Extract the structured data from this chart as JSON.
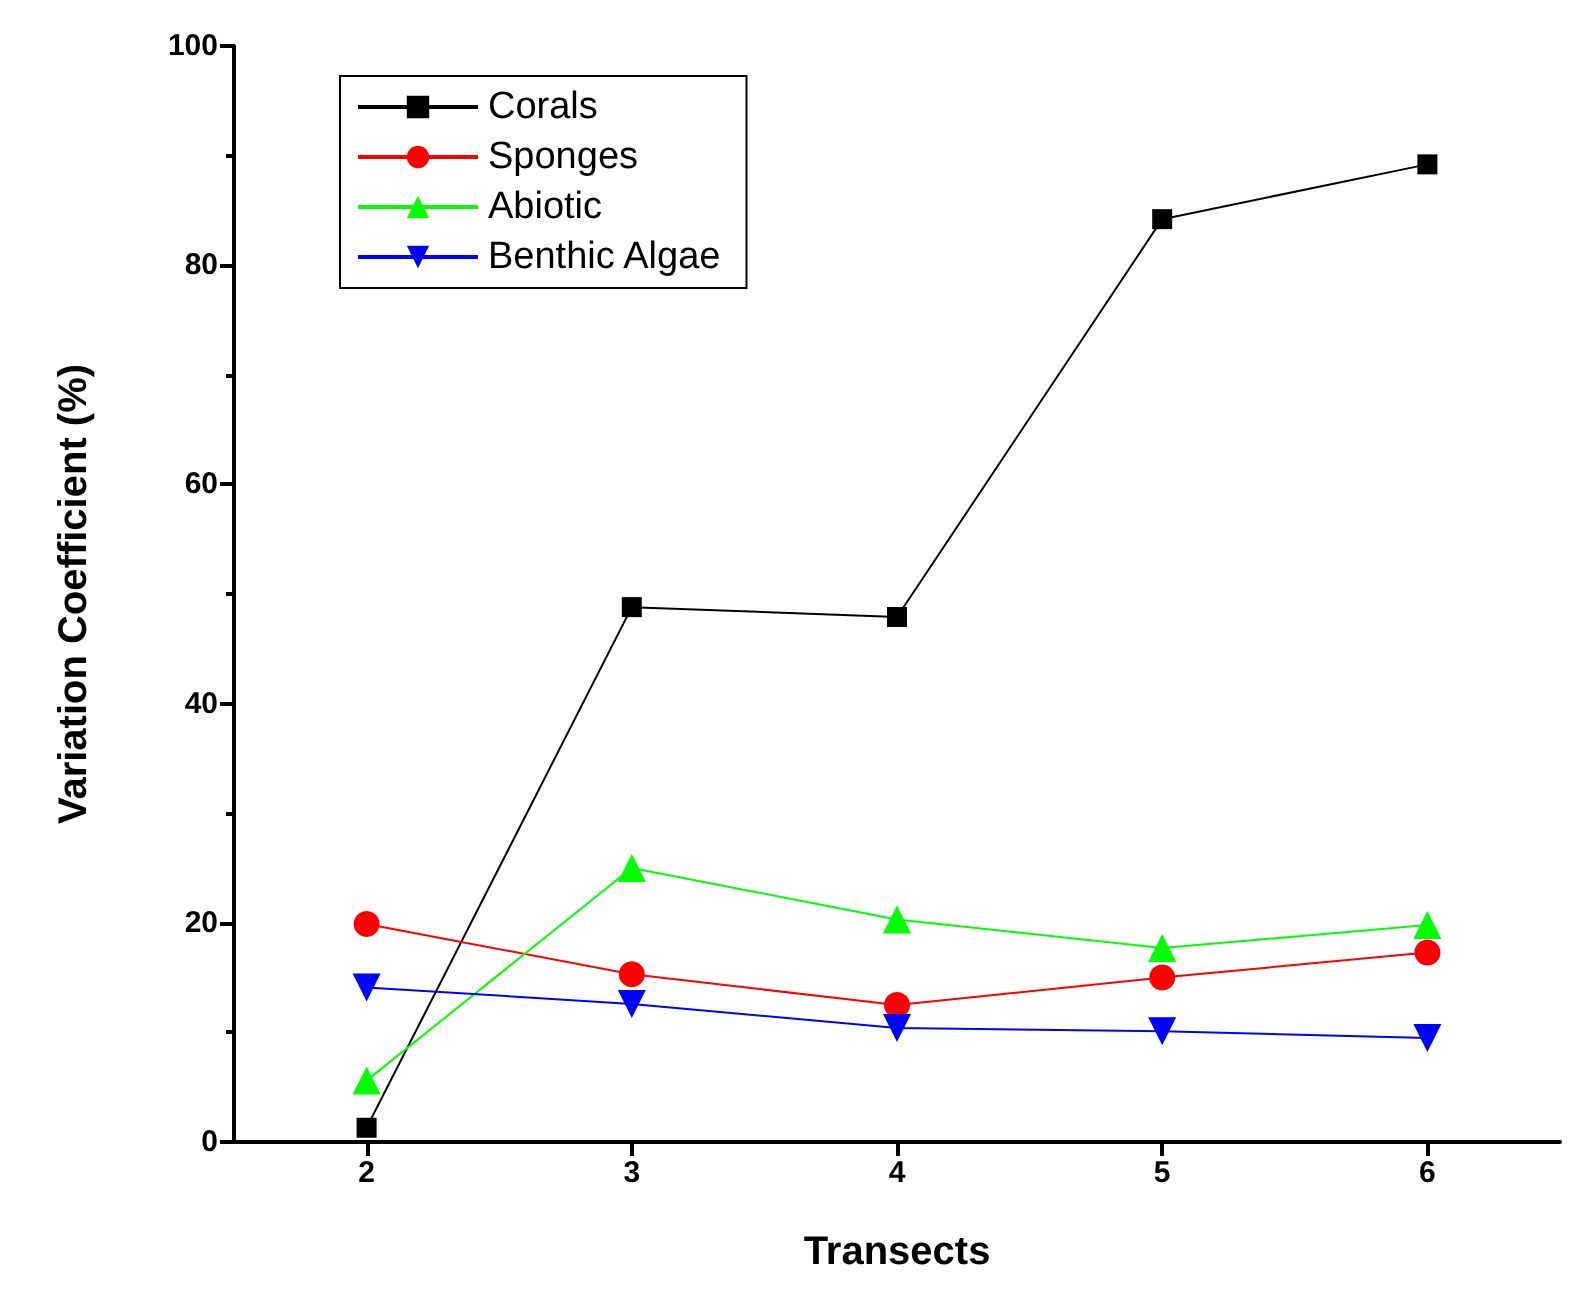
{
  "chart_data": {
    "type": "line",
    "xlabel": "Transects",
    "ylabel": "Variation Coefficient (%)",
    "x": [
      2,
      3,
      4,
      5,
      6
    ],
    "xlim": [
      1.5,
      6.5
    ],
    "xticks": [
      2,
      3,
      4,
      5,
      6
    ],
    "ylim": [
      0,
      100
    ],
    "yticks": [
      0,
      20,
      40,
      60,
      80,
      100
    ],
    "legend": "top left",
    "grid": false,
    "line_style": "solid",
    "series": [
      {
        "name": "Corals",
        "color": "#000000",
        "marker": "square",
        "values": [
          1.3,
          48.8,
          47.9,
          84.2,
          89.2
        ]
      },
      {
        "name": "Sponges",
        "color": "#ff0000",
        "marker": "circle",
        "values": [
          19.9,
          15.3,
          12.5,
          15.0,
          17.3
        ]
      },
      {
        "name": "Abiotic",
        "color": "#00ff00",
        "marker": "triangle",
        "values": [
          5.6,
          25.0,
          20.3,
          17.7,
          19.8
        ]
      },
      {
        "name": "Benthic Algae",
        "color": "#0000ff",
        "marker": "triangle-down",
        "values": [
          14.1,
          12.6,
          10.4,
          10.1,
          9.5
        ]
      }
    ]
  }
}
